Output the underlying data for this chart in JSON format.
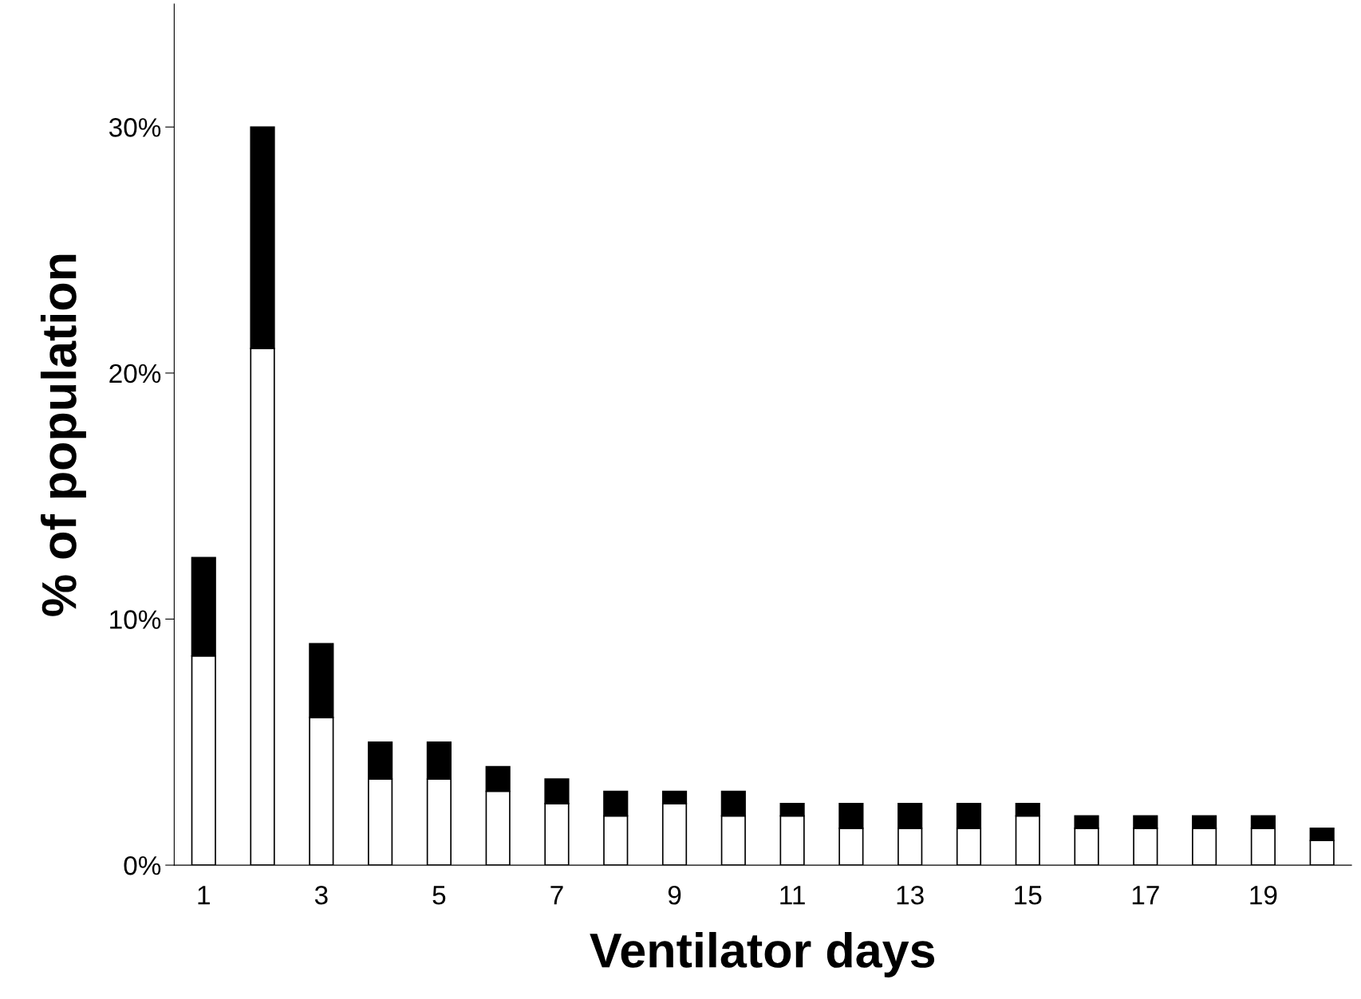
{
  "chart_data": {
    "type": "bar",
    "stacked": true,
    "xlabel": "Ventilator days",
    "ylabel": "% of population",
    "categories": [
      "1",
      null,
      "3",
      null,
      "5",
      null,
      "7",
      null,
      "9",
      null,
      "11",
      null,
      "13",
      null,
      "15",
      null,
      "17",
      null,
      "19",
      null
    ],
    "series": [
      {
        "color": "#ffffff",
        "values": [
          8.5,
          21.0,
          6.0,
          3.5,
          3.5,
          3.0,
          2.5,
          2.0,
          2.5,
          2.0,
          2.0,
          1.5,
          1.5,
          1.5,
          2.0,
          1.5,
          1.5,
          1.5,
          1.5,
          1.0
        ]
      },
      {
        "color": "#000000",
        "values": [
          4.0,
          9.0,
          3.0,
          1.5,
          1.5,
          1.0,
          1.0,
          1.0,
          0.5,
          1.0,
          0.5,
          1.0,
          1.0,
          1.0,
          0.5,
          0.5,
          0.5,
          0.5,
          0.5,
          0.5
        ]
      }
    ],
    "ylim": [
      0,
      35
    ],
    "yticks": [
      {
        "value": 0,
        "label": "0%"
      },
      {
        "value": 10,
        "label": "10%"
      },
      {
        "value": 20,
        "label": "20%"
      },
      {
        "value": 30,
        "label": "30%"
      }
    ],
    "grid": false,
    "legend": false
  }
}
